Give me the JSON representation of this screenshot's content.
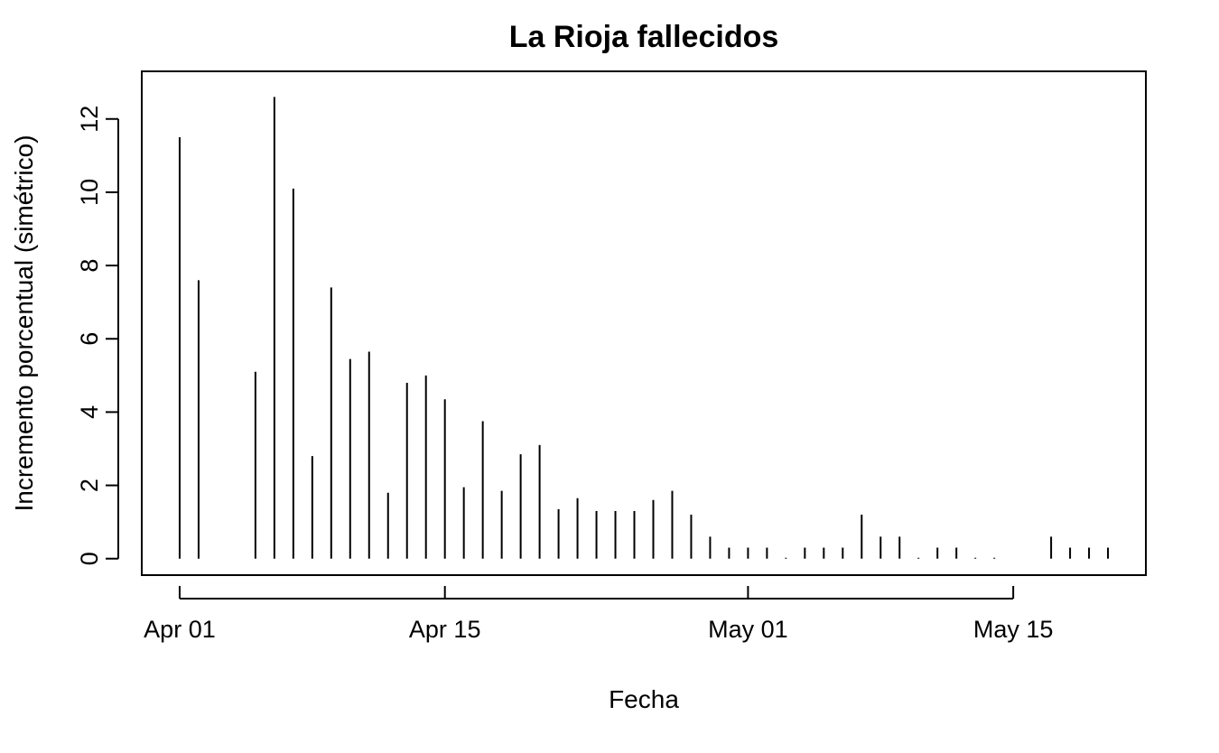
{
  "chart_data": {
    "type": "bar",
    "style": "vertical-lines",
    "title": "La Rioja fallecidos",
    "xlabel": "Fecha",
    "ylabel": "Incremento porcentual (simétrico)",
    "grid": false,
    "legend": "none",
    "x_ticks": [
      {
        "date": "2020-04-01",
        "label": "Apr 01"
      },
      {
        "date": "2020-04-15",
        "label": "Apr 15"
      },
      {
        "date": "2020-05-01",
        "label": "May 01"
      },
      {
        "date": "2020-05-15",
        "label": "May 15"
      }
    ],
    "y_ticks": [
      0,
      2,
      4,
      6,
      8,
      10,
      12
    ],
    "xlim": [
      "2020-03-30",
      "2020-05-22"
    ],
    "ylim": [
      -0.45,
      13.3
    ],
    "x": [
      "2020-04-01",
      "2020-04-02",
      "2020-04-05",
      "2020-04-06",
      "2020-04-07",
      "2020-04-08",
      "2020-04-09",
      "2020-04-10",
      "2020-04-11",
      "2020-04-12",
      "2020-04-13",
      "2020-04-14",
      "2020-04-15",
      "2020-04-16",
      "2020-04-17",
      "2020-04-18",
      "2020-04-19",
      "2020-04-20",
      "2020-04-21",
      "2020-04-22",
      "2020-04-23",
      "2020-04-24",
      "2020-04-25",
      "2020-04-26",
      "2020-04-27",
      "2020-04-28",
      "2020-04-29",
      "2020-04-30",
      "2020-05-01",
      "2020-05-02",
      "2020-05-03",
      "2020-05-04",
      "2020-05-05",
      "2020-05-06",
      "2020-05-07",
      "2020-05-08",
      "2020-05-09",
      "2020-05-10",
      "2020-05-11",
      "2020-05-12",
      "2020-05-13",
      "2020-05-14",
      "2020-05-17",
      "2020-05-18",
      "2020-05-19",
      "2020-05-20"
    ],
    "values": [
      11.5,
      7.6,
      5.1,
      12.6,
      10.1,
      2.8,
      7.4,
      5.45,
      5.65,
      1.8,
      4.8,
      5.0,
      4.35,
      1.95,
      3.75,
      1.85,
      2.85,
      3.1,
      1.35,
      1.65,
      1.3,
      1.3,
      1.3,
      1.6,
      1.85,
      1.2,
      0.6,
      0.3,
      0.3,
      0.3,
      0.0,
      0.3,
      0.3,
      0.3,
      1.2,
      0.6,
      0.6,
      0.0,
      0.3,
      0.3,
      0.0,
      0.0,
      0.6,
      0.3,
      0.3,
      0.3
    ]
  }
}
